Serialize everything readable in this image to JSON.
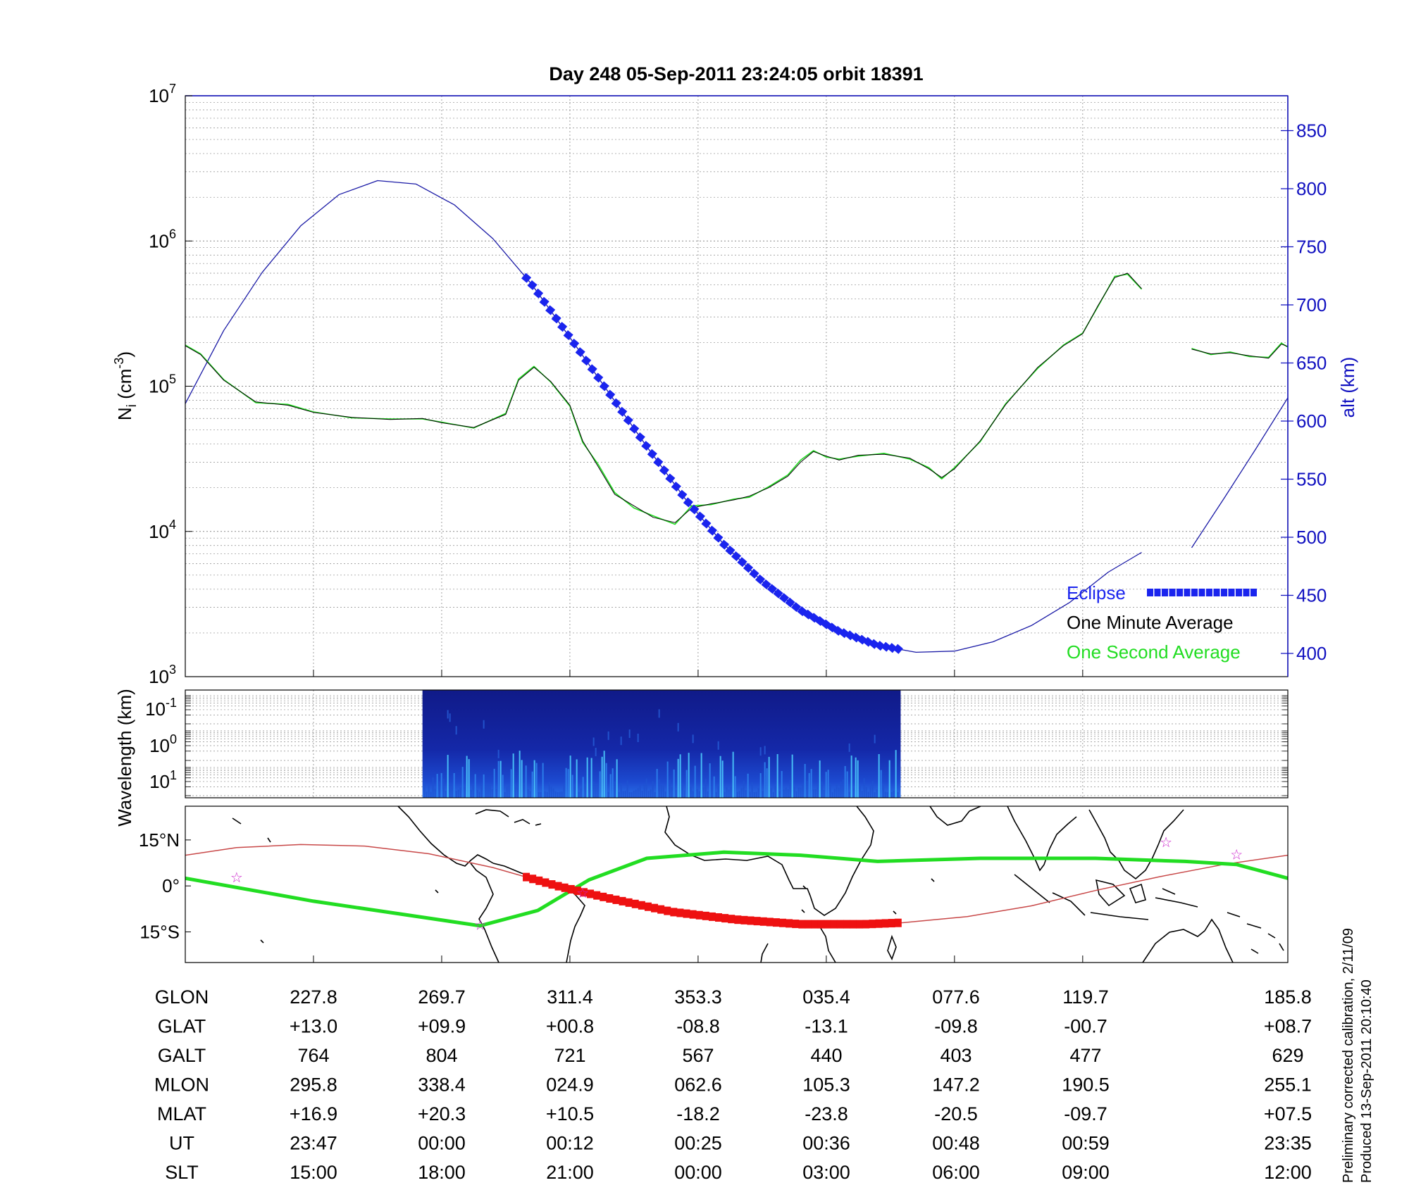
{
  "title": "Day 248  05-Sep-2011 23:24:05   orbit 18391",
  "colors": {
    "altitude": "#1a1aa6",
    "eclipse": "#1a24ee",
    "minute_avg": "#000000",
    "second_avg": "#22dd22",
    "track_eclipse": "#ee1111",
    "track_line": "#c84848",
    "magnetic_equator": "#22dd22",
    "stars": "#cc22cc",
    "right_axis": "#1010c0"
  },
  "chart_data": [
    {
      "type": "line",
      "panel": "ion density",
      "ylabel": "N",
      "ylabel_sub": "i",
      "ylabel_unit_pre": "(cm",
      "ylabel_unit_sup": "-3",
      "ylabel_unit_post": ")",
      "yscale": "log",
      "ylim": [
        1000,
        10000000
      ],
      "ytick_mantissa": "10",
      "ytick_exponents": [
        "3",
        "4",
        "5",
        "6",
        "7"
      ],
      "y2label": "alt (km)",
      "y2lim": [
        380,
        880
      ],
      "y2ticks": [
        "400",
        "450",
        "500",
        "550",
        "600",
        "650",
        "700",
        "750",
        "800",
        "850"
      ],
      "xlim": [
        0,
        8.6
      ],
      "legend": {
        "placement": "bottom-right",
        "items": [
          "Eclipse",
          "One Minute Average",
          "One Second Average"
        ]
      },
      "series": [
        {
          "name": "One Minute Average",
          "axis": "left",
          "segments": [
            [
              [
                0,
                190000
              ],
              [
                0.12,
                165000
              ],
              [
                0.3,
                110000
              ],
              [
                0.55,
                78000
              ],
              [
                0.8,
                74000
              ],
              [
                1.0,
                66000
              ],
              [
                1.3,
                61000
              ],
              [
                1.6,
                59000
              ],
              [
                1.85,
                60000
              ],
              [
                2.0,
                56000
              ],
              [
                2.25,
                52000
              ],
              [
                2.5,
                64000
              ],
              [
                2.6,
                110000
              ],
              [
                2.72,
                135000
              ],
              [
                2.85,
                108000
              ],
              [
                3.0,
                74000
              ],
              [
                3.1,
                42000
              ],
              [
                3.22,
                28000
              ],
              [
                3.35,
                18000
              ],
              [
                3.5,
                15000
              ],
              [
                3.65,
                12500
              ],
              [
                3.82,
                11500
              ],
              [
                3.95,
                14500
              ],
              [
                4.1,
                15500
              ],
              [
                4.28,
                16500
              ],
              [
                4.4,
                17500
              ],
              [
                4.55,
                20000
              ],
              [
                4.7,
                24000
              ],
              [
                4.8,
                30000
              ],
              [
                4.9,
                35500
              ],
              [
                5.0,
                33000
              ],
              [
                5.1,
                31000
              ],
              [
                5.25,
                33500
              ],
              [
                5.45,
                34000
              ],
              [
                5.65,
                32000
              ],
              [
                5.8,
                27000
              ],
              [
                5.9,
                23500
              ],
              [
                6.0,
                27000
              ],
              [
                6.2,
                42000
              ],
              [
                6.4,
                75000
              ],
              [
                6.65,
                135000
              ],
              [
                6.85,
                190000
              ],
              [
                7.0,
                230000
              ],
              [
                7.12,
                360000
              ],
              [
                7.25,
                560000
              ],
              [
                7.35,
                600000
              ],
              [
                7.46,
                470000
              ]
            ],
            [
              [
                7.85,
                180000
              ],
              [
                8.0,
                167000
              ],
              [
                8.15,
                170000
              ],
              [
                8.3,
                162000
              ],
              [
                8.45,
                156000
              ],
              [
                8.55,
                195000
              ],
              [
                8.6,
                188000
              ]
            ]
          ]
        },
        {
          "name": "One Second Average",
          "axis": "left",
          "segments": [
            [
              [
                0,
                192000
              ],
              [
                0.12,
                167000
              ],
              [
                0.3,
                111000
              ],
              [
                0.55,
                77000
              ],
              [
                0.8,
                75000
              ],
              [
                1.0,
                66500
              ],
              [
                1.3,
                60500
              ],
              [
                1.6,
                59500
              ],
              [
                1.85,
                59500
              ],
              [
                2.0,
                56500
              ],
              [
                2.25,
                51500
              ],
              [
                2.5,
                65000
              ],
              [
                2.6,
                112000
              ],
              [
                2.72,
                137000
              ],
              [
                2.85,
                107000
              ],
              [
                3.0,
                73000
              ],
              [
                3.1,
                41000
              ],
              [
                3.22,
                29000
              ],
              [
                3.35,
                18500
              ],
              [
                3.5,
                14500
              ],
              [
                3.65,
                12800
              ],
              [
                3.82,
                11200
              ],
              [
                3.95,
                15000
              ],
              [
                4.1,
                15300
              ],
              [
                4.28,
                16700
              ],
              [
                4.4,
                17200
              ],
              [
                4.55,
                20300
              ],
              [
                4.7,
                24500
              ],
              [
                4.8,
                31000
              ],
              [
                4.9,
                36000
              ],
              [
                5.0,
                32500
              ],
              [
                5.1,
                31500
              ],
              [
                5.25,
                33000
              ],
              [
                5.45,
                34500
              ],
              [
                5.65,
                31500
              ],
              [
                5.8,
                27500
              ],
              [
                5.9,
                23000
              ],
              [
                6.0,
                27500
              ],
              [
                6.2,
                41500
              ],
              [
                6.4,
                76000
              ],
              [
                6.65,
                133000
              ],
              [
                6.85,
                192000
              ],
              [
                7.0,
                232000
              ],
              [
                7.12,
                355000
              ],
              [
                7.25,
                570000
              ],
              [
                7.35,
                590000
              ],
              [
                7.46,
                465000
              ]
            ],
            [
              [
                7.85,
                182000
              ],
              [
                8.0,
                165000
              ],
              [
                8.15,
                172000
              ],
              [
                8.3,
                160000
              ],
              [
                8.45,
                158000
              ],
              [
                8.55,
                198000
              ],
              [
                8.6,
                186000
              ]
            ]
          ]
        },
        {
          "name": "altitude",
          "axis": "right",
          "segments": [
            [
              [
                0,
                615
              ],
              [
                0.3,
                678
              ],
              [
                0.6,
                728
              ],
              [
                0.9,
                768
              ],
              [
                1.2,
                795
              ],
              [
                1.5,
                807
              ],
              [
                1.8,
                804
              ],
              [
                2.1,
                786
              ],
              [
                2.4,
                757
              ],
              [
                2.7,
                718
              ],
              [
                3.0,
                672
              ],
              [
                3.3,
                625
              ],
              [
                3.6,
                578
              ],
              [
                3.9,
                533
              ],
              [
                4.2,
                494
              ],
              [
                4.5,
                462
              ],
              [
                4.8,
                437
              ],
              [
                5.1,
                419
              ],
              [
                5.4,
                407
              ],
              [
                5.7,
                401
              ],
              [
                6.0,
                402
              ],
              [
                6.3,
                410
              ],
              [
                6.6,
                424
              ],
              [
                6.9,
                444
              ],
              [
                7.2,
                470
              ],
              [
                7.46,
                487
              ]
            ],
            [
              [
                7.85,
                491
              ],
              [
                8.1,
                533
              ],
              [
                8.35,
                576
              ],
              [
                8.6,
                620
              ]
            ]
          ]
        },
        {
          "name": "Eclipse",
          "axis": "right",
          "x_range": [
            2.66,
            5.56
          ]
        }
      ]
    },
    {
      "type": "heatmap",
      "panel": "spectrogram",
      "ylabel": "Wavelength (km)",
      "ytick_mantissa": "10",
      "ytick_exponents": [
        "-1",
        "0",
        "1"
      ],
      "data_x_range": [
        1.85,
        5.58
      ]
    },
    {
      "type": "line",
      "panel": "map",
      "ytick_labels": [
        "15°N",
        "0°",
        "15°S"
      ],
      "ylim": [
        -25,
        26
      ],
      "xlim": [
        0,
        8.6
      ],
      "series": [
        {
          "name": "magnetic equator",
          "points": [
            [
              0,
              2.5
            ],
            [
              1.0,
              -5
            ],
            [
              2.3,
              -13
            ],
            [
              2.75,
              -8
            ],
            [
              3.15,
              2
            ],
            [
              3.6,
              9
            ],
            [
              4.2,
              11
            ],
            [
              4.8,
              10
            ],
            [
              5.4,
              8
            ],
            [
              6.2,
              9
            ],
            [
              7.1,
              9
            ],
            [
              7.8,
              8
            ],
            [
              8.2,
              7
            ],
            [
              8.6,
              2.5
            ]
          ]
        },
        {
          "name": "orbit track",
          "points": [
            [
              0,
              10
            ],
            [
              0.4,
              12.5
            ],
            [
              0.9,
              13.5
            ],
            [
              1.4,
              13
            ],
            [
              1.9,
              10.5
            ],
            [
              2.4,
              6
            ],
            [
              2.9,
              0
            ],
            [
              3.3,
              -4
            ],
            [
              3.8,
              -8.5
            ],
            [
              4.3,
              -11
            ],
            [
              4.8,
              -12.5
            ],
            [
              5.3,
              -12.5
            ],
            [
              5.6,
              -12
            ],
            [
              6.1,
              -10
            ],
            [
              6.6,
              -6.5
            ],
            [
              7.1,
              -1.5
            ],
            [
              7.6,
              3
            ],
            [
              8.1,
              7
            ],
            [
              8.6,
              10
            ]
          ]
        },
        {
          "name": "eclipse track",
          "x_range": [
            2.66,
            5.56
          ]
        }
      ],
      "stars": [
        [
          0.4,
          3
        ],
        [
          2.3,
          -12.5
        ],
        [
          3.1,
          -2
        ],
        [
          7.65,
          14.5
        ],
        [
          8.2,
          10.5
        ]
      ]
    }
  ],
  "table": {
    "row_labels": [
      "GLON",
      "GLAT",
      "GALT",
      "MLON",
      "MLAT",
      "UT",
      "SLT"
    ],
    "columns": [
      [
        "227.8",
        "+13.0",
        "764",
        "295.8",
        "+16.9",
        "23:47",
        "15:00"
      ],
      [
        "269.7",
        "+09.9",
        "804",
        "338.4",
        "+20.3",
        "00:00",
        "18:00"
      ],
      [
        "311.4",
        "+00.8",
        "721",
        "024.9",
        "+10.5",
        "00:12",
        "21:00"
      ],
      [
        "353.3",
        "-08.8",
        "567",
        "062.6",
        "-18.2",
        "00:25",
        "00:00"
      ],
      [
        "035.4",
        "-13.1",
        "440",
        "105.3",
        "-23.8",
        "00:36",
        "03:00"
      ],
      [
        "077.6",
        "-09.8",
        "403",
        "147.2",
        "-20.5",
        "00:48",
        "06:00"
      ],
      [
        "119.7",
        "-00.7",
        "477",
        "190.5",
        "-09.7",
        "00:59",
        "09:00"
      ],
      [
        "185.8",
        "+08.7",
        "629",
        "255.1",
        "+07.5",
        "23:35",
        "12:00"
      ]
    ]
  },
  "footnote": {
    "line1": "Preliminary corrected calibration, 2/11/09",
    "line2": "Produced 13-Sep-2011 20:10:40"
  }
}
